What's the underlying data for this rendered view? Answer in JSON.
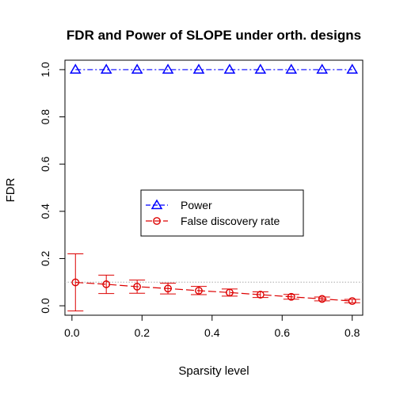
{
  "chart_data": {
    "type": "line",
    "title": "FDR and Power of SLOPE under orth. designs",
    "xlabel": "Sparsity level",
    "ylabel": "FDR",
    "xlim": [
      -0.02,
      0.83
    ],
    "ylim": [
      -0.04,
      1.04
    ],
    "x_ticks": [
      0.0,
      0.2,
      0.4,
      0.6,
      0.8
    ],
    "x_tick_labels": [
      "0.0",
      "0.2",
      "0.4",
      "0.6",
      "0.8"
    ],
    "y_ticks": [
      0.0,
      0.2,
      0.4,
      0.6,
      0.8,
      1.0
    ],
    "y_tick_labels": [
      "0.0",
      "0.2",
      "0.4",
      "0.6",
      "0.8",
      "1.0"
    ],
    "reference_line": {
      "y": 0.1,
      "color": "#aaaaaa",
      "style": "dotted"
    },
    "legend_position": "center",
    "x": [
      0.01,
      0.098,
      0.186,
      0.274,
      0.362,
      0.45,
      0.538,
      0.626,
      0.714,
      0.8
    ],
    "series": [
      {
        "name": "Power",
        "color": "#0000ff",
        "marker": "triangle",
        "line_style": "dashed",
        "values": [
          1.0,
          1.0,
          1.0,
          1.0,
          1.0,
          1.0,
          1.0,
          1.0,
          1.0,
          1.0
        ]
      },
      {
        "name": "False discovery rate",
        "color": "#dd0000",
        "marker": "circle",
        "line_style": "dashed",
        "values": [
          0.099,
          0.091,
          0.081,
          0.073,
          0.064,
          0.056,
          0.047,
          0.038,
          0.029,
          0.02
        ],
        "error_low": [
          -0.022,
          0.052,
          0.053,
          0.05,
          0.047,
          0.041,
          0.035,
          0.028,
          0.021,
          0.013
        ],
        "error_high": [
          0.22,
          0.13,
          0.109,
          0.096,
          0.082,
          0.071,
          0.059,
          0.048,
          0.037,
          0.027
        ]
      }
    ]
  }
}
